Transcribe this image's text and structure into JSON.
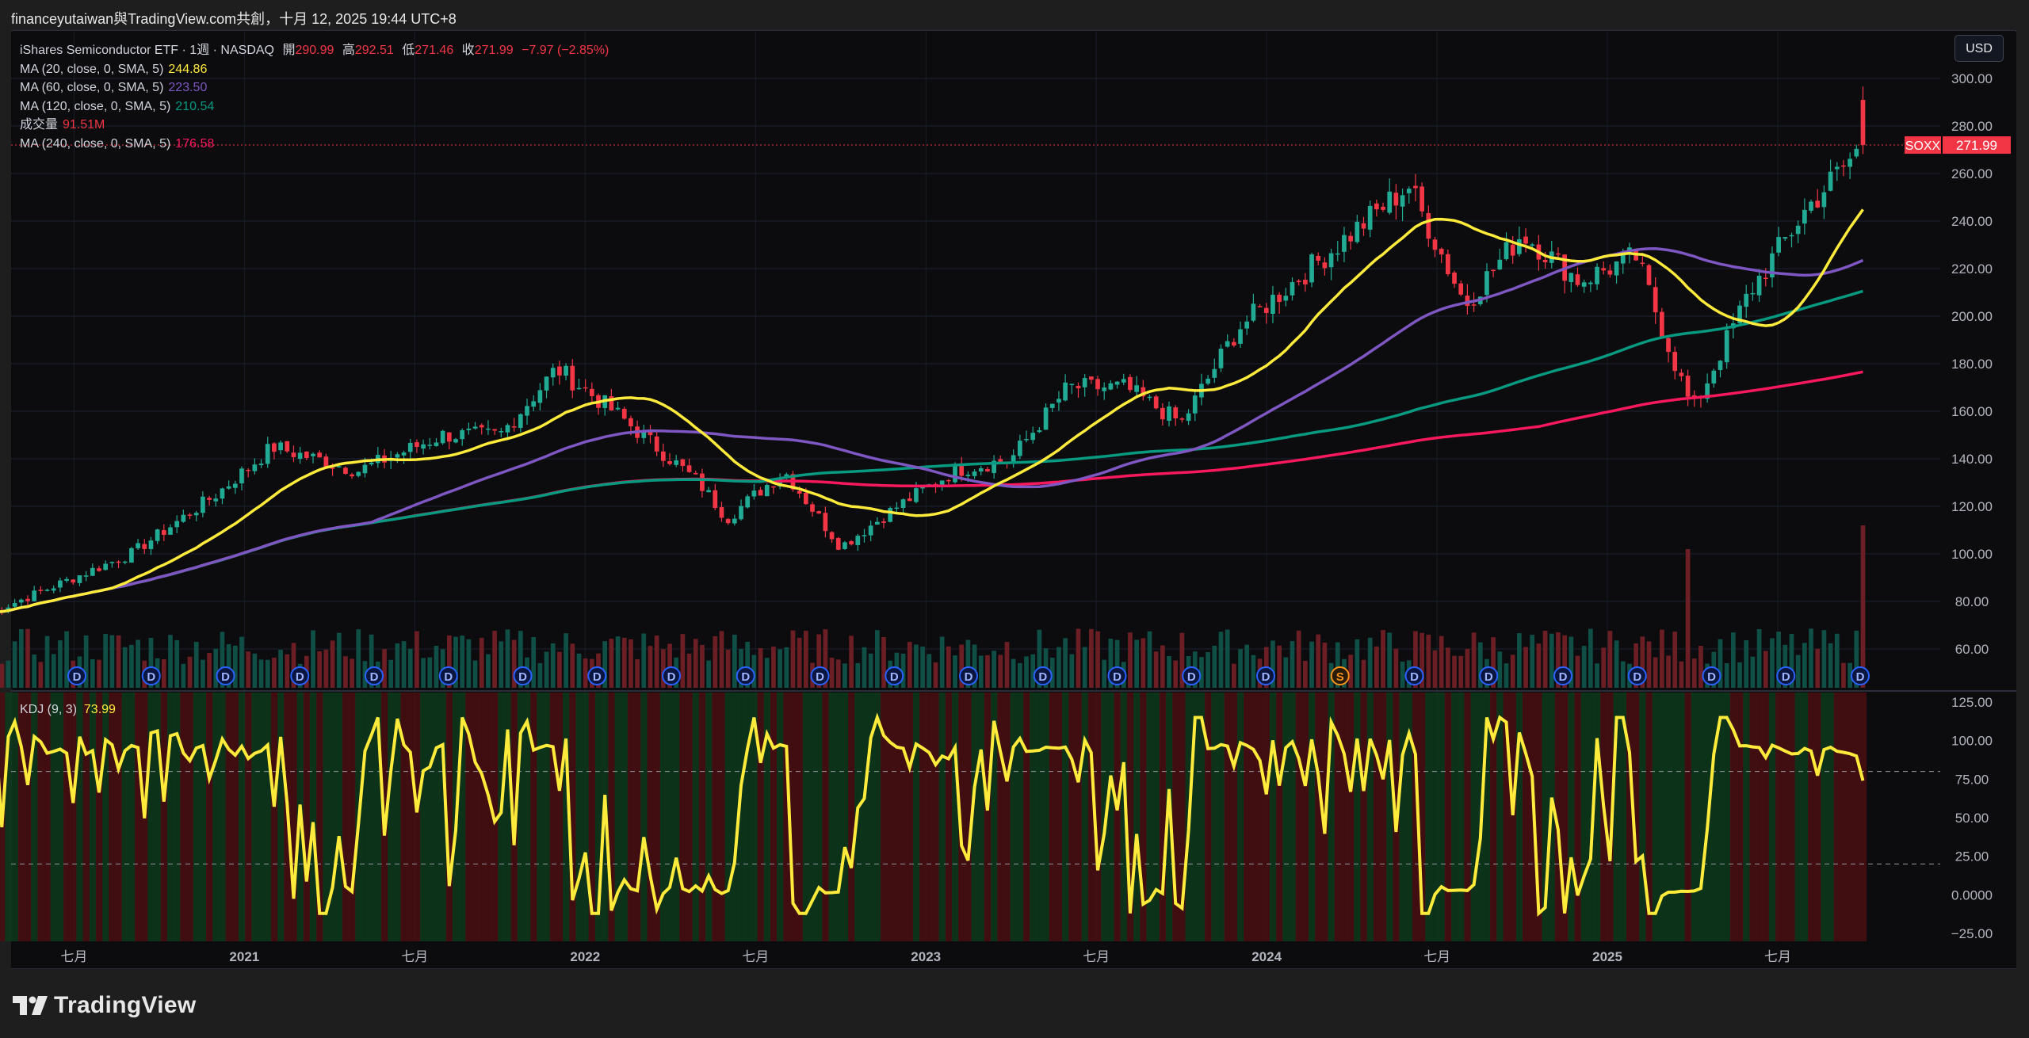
{
  "header": {
    "title": "financeyutaiwan與TradingView.com共創，十月 12, 2025 19:44 UTC+8"
  },
  "legend": {
    "symbol_line": "iShares Semiconductor ETF · 1週 · NASDAQ",
    "open_label": "開",
    "open": "290.99",
    "high_label": "高",
    "high": "292.51",
    "low_label": "低",
    "low": "271.46",
    "close_label": "收",
    "close": "271.99",
    "change": "−7.97 (−2.85%)",
    "ma20_label": "MA (20, close, 0, SMA, 5)",
    "ma20_value": "244.86",
    "ma60_label": "MA (60, close, 0, SMA, 5)",
    "ma60_value": "223.50",
    "ma120_label": "MA (120, close, 0, SMA, 5)",
    "ma120_value": "210.54",
    "volume_label": "成交量",
    "volume_value": "91.51M",
    "ma240_label": "MA (240, close, 0, SMA, 5)",
    "ma240_value": "176.58"
  },
  "currency_button": "USD",
  "price_tag": {
    "symbol": "SOXX",
    "price": "271.99"
  },
  "kdj_legend": {
    "label": "KDJ (9, 3)",
    "value": "73.99"
  },
  "brand": {
    "name": "TradingView"
  },
  "colors": {
    "up": "#22ab94",
    "down": "#f23645",
    "ma20": "#ffeb3b",
    "ma60": "#7e57c2",
    "ma120": "#089981",
    "ma240": "#f7185d",
    "kdj": "#ffeb3b"
  },
  "event_markers": [
    "D",
    "D",
    "D",
    "D",
    "D",
    "D",
    "D",
    "D",
    "D",
    "D",
    "D",
    "D",
    "D",
    "D",
    "D",
    "D",
    "D",
    "S",
    "D",
    "D",
    "D",
    "D",
    "D",
    "D",
    "D"
  ],
  "chart_data": [
    {
      "type": "candlestick",
      "title": "iShares Semiconductor ETF · 1週 · NASDAQ",
      "y_axis_ticks": [
        "300.00",
        "280.00",
        "260.00",
        "240.00",
        "220.00",
        "200.00",
        "180.00",
        "160.00",
        "140.00",
        "120.00",
        "100.00",
        "80.00",
        "60.00"
      ],
      "ylim": [
        40,
        310
      ],
      "x_axis_ticks": [
        "七月",
        "2021",
        "七月",
        "2022",
        "七月",
        "2023",
        "七月",
        "2024",
        "七月",
        "2025",
        "七月"
      ],
      "approx_close_path": [
        [
          "2020-04",
          75
        ],
        [
          "2020-06",
          85
        ],
        [
          "2020-09",
          100
        ],
        [
          "2020-12",
          125
        ],
        [
          "2021-02",
          145
        ],
        [
          "2021-05",
          135
        ],
        [
          "2021-08",
          150
        ],
        [
          "2021-10",
          150
        ],
        [
          "2021-12",
          178
        ],
        [
          "2022-02",
          160
        ],
        [
          "2022-05",
          130
        ],
        [
          "2022-06",
          115
        ],
        [
          "2022-08",
          135
        ],
        [
          "2022-10",
          103
        ],
        [
          "2022-12",
          120
        ],
        [
          "2023-02",
          135
        ],
        [
          "2023-04",
          140
        ],
        [
          "2023-06",
          170
        ],
        [
          "2023-08",
          170
        ],
        [
          "2023-10",
          155
        ],
        [
          "2023-12",
          195
        ],
        [
          "2024-03",
          225
        ],
        [
          "2024-06",
          255
        ],
        [
          "2024-08",
          205
        ],
        [
          "2024-10",
          235
        ],
        [
          "2024-12",
          215
        ],
        [
          "2025-02",
          225
        ],
        [
          "2025-04",
          160
        ],
        [
          "2025-06",
          210
        ],
        [
          "2025-08",
          245
        ],
        [
          "2025-10",
          272
        ]
      ],
      "series": [
        {
          "name": "MA (20, close, 0, SMA, 5)",
          "last": 244.86
        },
        {
          "name": "MA (60, close, 0, SMA, 5)",
          "last": 223.5
        },
        {
          "name": "MA (120, close, 0, SMA, 5)",
          "last": 210.54
        },
        {
          "name": "MA (240, close, 0, SMA, 5)",
          "last": 176.58
        }
      ],
      "last_price": 271.99,
      "volume_last": "91.51M"
    },
    {
      "type": "line",
      "title": "KDJ (9, 3)",
      "y_axis_ticks": [
        "125.00",
        "100.00",
        "75.00",
        "50.00",
        "25.00",
        "0.0000",
        "−25.00"
      ],
      "ylim": [
        -33,
        133
      ],
      "reference_lines": [
        80,
        20
      ],
      "last": 73.99
    }
  ]
}
